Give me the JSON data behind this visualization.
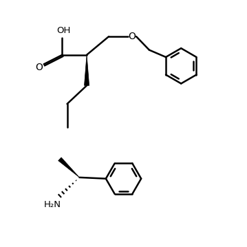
{
  "bg_color": "#ffffff",
  "line_color": "#000000",
  "line_width": 1.8,
  "figsize": [
    3.59,
    3.59
  ],
  "dpi": 100,
  "h2n_label": "H₂N",
  "oh_label": "OH",
  "o_label": "O"
}
